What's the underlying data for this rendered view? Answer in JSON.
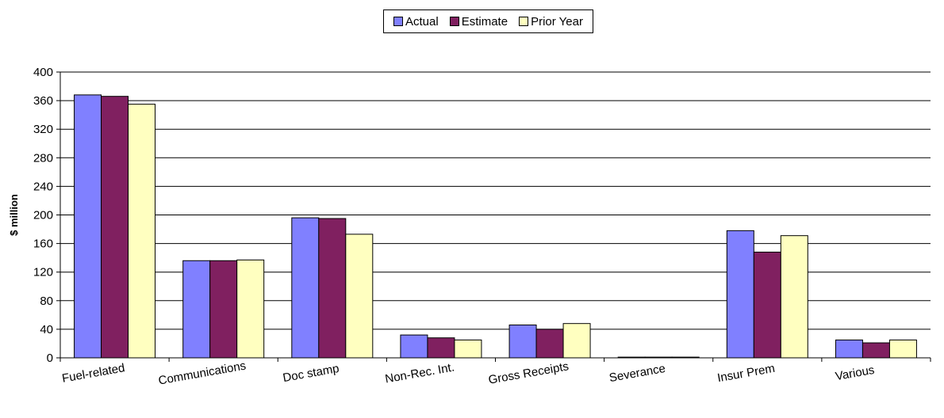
{
  "chart_data": {
    "type": "bar",
    "title": "",
    "xlabel": "",
    "ylabel": "$ million",
    "ylim": [
      0,
      400
    ],
    "yticks": [
      0,
      40,
      80,
      120,
      160,
      200,
      240,
      280,
      320,
      360,
      400
    ],
    "grid": true,
    "legend_position": "top-center",
    "categories": [
      "Fuel-related",
      "Communications",
      "Doc stamp",
      "Non-Rec. Int.",
      "Gross Receipts",
      "Severance",
      "Insur Prem",
      "Various"
    ],
    "series": [
      {
        "name": "Actual",
        "color": "#8080FF",
        "values": [
          368,
          136,
          196,
          32,
          46,
          1,
          178,
          25
        ]
      },
      {
        "name": "Estimate",
        "color": "#802060",
        "values": [
          366,
          136,
          195,
          28,
          40,
          1,
          148,
          21
        ]
      },
      {
        "name": "Prior Year",
        "color": "#FFFFC0",
        "values": [
          355,
          137,
          173,
          25,
          48,
          1,
          171,
          25
        ]
      }
    ]
  }
}
